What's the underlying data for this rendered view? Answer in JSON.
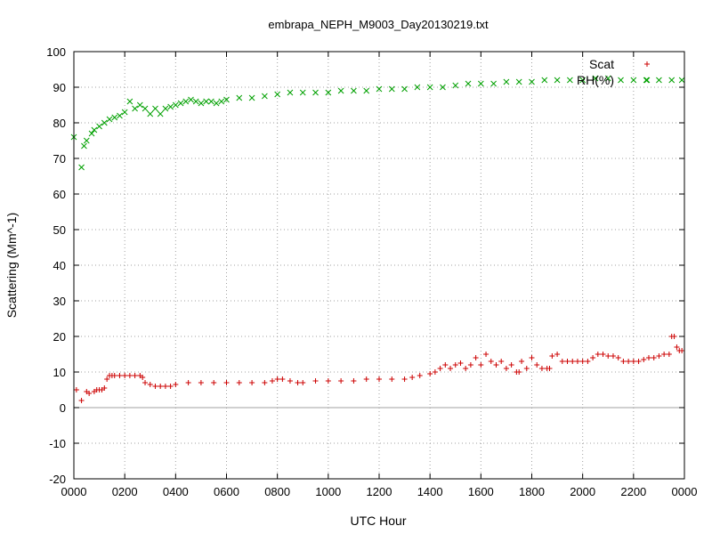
{
  "chart_data": {
    "type": "scatter",
    "title": "embrapa_NEPH_M9003_Day20130219.txt",
    "xlabel": "UTC Hour",
    "ylabel": "Scattering (Mm^-1)",
    "xlim": [
      0,
      24
    ],
    "ylim": [
      -20,
      100
    ],
    "x_ticks": [
      0,
      2,
      4,
      6,
      8,
      10,
      12,
      14,
      16,
      18,
      20,
      22,
      24
    ],
    "x_tick_labels": [
      "0000",
      "0200",
      "0400",
      "0600",
      "0800",
      "1000",
      "1200",
      "1400",
      "1600",
      "1800",
      "2000",
      "2200",
      "0000"
    ],
    "y_ticks": [
      -20,
      -10,
      0,
      10,
      20,
      30,
      40,
      50,
      60,
      70,
      80,
      90,
      100
    ],
    "grid": true,
    "legend_position": "top-right",
    "series": [
      {
        "name": "Scat",
        "marker": "plus",
        "color": "#cc0000",
        "x": [
          0.1,
          0.3,
          0.5,
          0.6,
          0.8,
          0.9,
          1.0,
          1.1,
          1.2,
          1.3,
          1.4,
          1.5,
          1.6,
          1.8,
          2.0,
          2.2,
          2.4,
          2.6,
          2.7,
          2.8,
          3.0,
          3.2,
          3.4,
          3.6,
          3.8,
          4.0,
          4.5,
          5.0,
          5.5,
          6.0,
          6.5,
          7.0,
          7.5,
          7.8,
          8.0,
          8.2,
          8.5,
          8.8,
          9.0,
          9.5,
          10.0,
          10.5,
          11.0,
          11.5,
          12.0,
          12.5,
          13.0,
          13.3,
          13.6,
          14.0,
          14.2,
          14.4,
          14.6,
          14.8,
          15.0,
          15.2,
          15.4,
          15.6,
          15.8,
          16.0,
          16.2,
          16.4,
          16.6,
          16.8,
          17.0,
          17.2,
          17.4,
          17.5,
          17.6,
          17.8,
          18.0,
          18.2,
          18.4,
          18.6,
          18.7,
          18.8,
          19.0,
          19.2,
          19.4,
          19.6,
          19.8,
          20.0,
          20.2,
          20.4,
          20.6,
          20.8,
          21.0,
          21.2,
          21.4,
          21.6,
          21.8,
          22.0,
          22.2,
          22.4,
          22.6,
          22.8,
          23.0,
          23.2,
          23.4,
          23.5,
          23.6,
          23.7,
          23.8,
          23.9
        ],
        "y": [
          5,
          2,
          4.5,
          4,
          4.5,
          5,
          5,
          5,
          5.5,
          8,
          9,
          9,
          9,
          9,
          9,
          9,
          9,
          9,
          8.5,
          7,
          6.5,
          6,
          6,
          6,
          6,
          6.5,
          7,
          7,
          7,
          7,
          7,
          7,
          7,
          7.5,
          8,
          8,
          7.5,
          7,
          7,
          7.5,
          7.5,
          7.5,
          7.5,
          8,
          8,
          8,
          8,
          8.5,
          9,
          9.5,
          10,
          11,
          12,
          11,
          12,
          12.5,
          11,
          12,
          14,
          12,
          15,
          13,
          12,
          13,
          11,
          12,
          10,
          10,
          13,
          11,
          14,
          12,
          11,
          11,
          11,
          14.5,
          15,
          13,
          13,
          13,
          13,
          13,
          13,
          14,
          15,
          15,
          14.5,
          14.5,
          14,
          13,
          13,
          13,
          13,
          13.5,
          14,
          14,
          14.5,
          15,
          15,
          20,
          20,
          17,
          16,
          16
        ]
      },
      {
        "name": "RH(%)",
        "marker": "cross",
        "color": "#00a000",
        "x": [
          0.0,
          0.3,
          0.4,
          0.5,
          0.7,
          0.8,
          1.0,
          1.2,
          1.4,
          1.6,
          1.8,
          2.0,
          2.2,
          2.4,
          2.6,
          2.8,
          3.0,
          3.2,
          3.4,
          3.6,
          3.8,
          4.0,
          4.2,
          4.4,
          4.6,
          4.8,
          5.0,
          5.2,
          5.4,
          5.6,
          5.8,
          6.0,
          6.5,
          7.0,
          7.5,
          8.0,
          8.5,
          9.0,
          9.5,
          10.0,
          10.5,
          11.0,
          11.5,
          12.0,
          12.5,
          13.0,
          13.5,
          14.0,
          14.5,
          15.0,
          15.5,
          16.0,
          16.5,
          17.0,
          17.5,
          18.0,
          18.5,
          19.0,
          19.5,
          20.0,
          20.5,
          21.0,
          21.5,
          22.0,
          22.5,
          23.0,
          23.5,
          23.9
        ],
        "y": [
          76,
          67.5,
          73.5,
          75,
          77,
          78,
          79,
          80,
          81,
          81.5,
          82,
          83,
          86,
          84,
          85,
          84,
          82.5,
          84,
          82.5,
          84,
          84.5,
          85,
          85.5,
          86,
          86.5,
          86,
          85.5,
          86,
          86,
          85.5,
          86,
          86.5,
          87,
          87,
          87.5,
          88,
          88.5,
          88.5,
          88.5,
          88.5,
          89,
          89,
          89,
          89.5,
          89.5,
          89.5,
          90,
          90,
          90,
          90.5,
          91,
          91,
          91,
          91.5,
          91.5,
          91.5,
          92,
          92,
          92,
          92,
          92.5,
          92.5,
          92,
          92,
          92,
          92,
          92,
          92
        ]
      }
    ]
  }
}
